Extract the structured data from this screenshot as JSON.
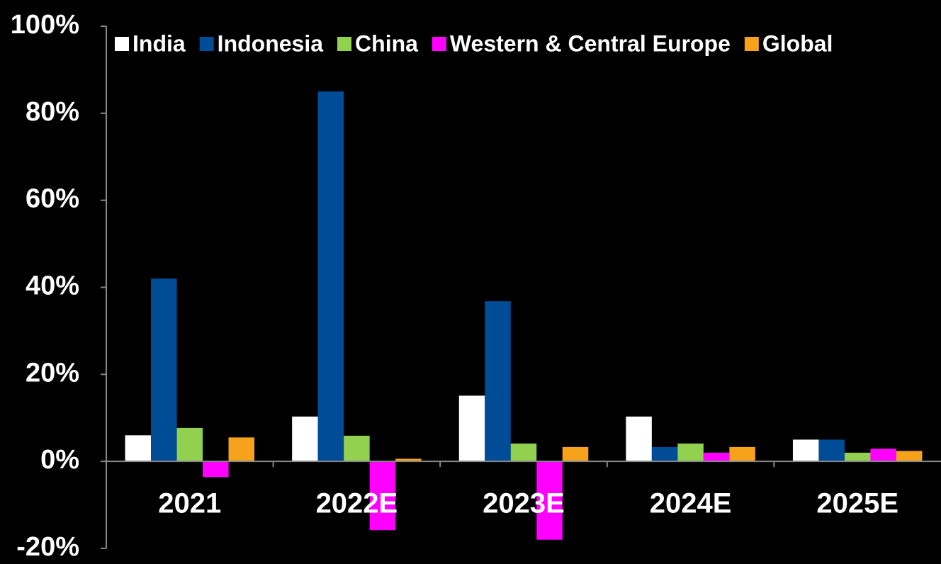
{
  "chart_data": {
    "type": "bar",
    "categories": [
      "2021",
      "2022E",
      "2023E",
      "2024E",
      "2025E"
    ],
    "series": [
      {
        "name": "India",
        "color": "#ffffff",
        "values": [
          6,
          10.3,
          15.1,
          10.3,
          5
        ]
      },
      {
        "name": "Indonesia",
        "color": "#004c97",
        "values": [
          42,
          85,
          36.8,
          3.3,
          5
        ]
      },
      {
        "name": "China",
        "color": "#92d050",
        "values": [
          7.7,
          5.9,
          4.1,
          4.1,
          2
        ]
      },
      {
        "name": "Western & Central Europe",
        "color": "#ff00ff",
        "values": [
          -3.6,
          -15.8,
          -18,
          2,
          2.9
        ]
      },
      {
        "name": "Global",
        "color": "#f7a21b",
        "values": [
          5.5,
          0.6,
          3.3,
          3.3,
          2.4
        ]
      }
    ],
    "ylim": [
      -20,
      100
    ],
    "yticks": [
      {
        "value": -20,
        "label": "-20%"
      },
      {
        "value": 0,
        "label": "0%"
      },
      {
        "value": 20,
        "label": "20%"
      },
      {
        "value": 40,
        "label": "40%"
      },
      {
        "value": 60,
        "label": "60%"
      },
      {
        "value": 80,
        "label": "80%"
      },
      {
        "value": 100,
        "label": "100%"
      }
    ],
    "legend": "top"
  }
}
